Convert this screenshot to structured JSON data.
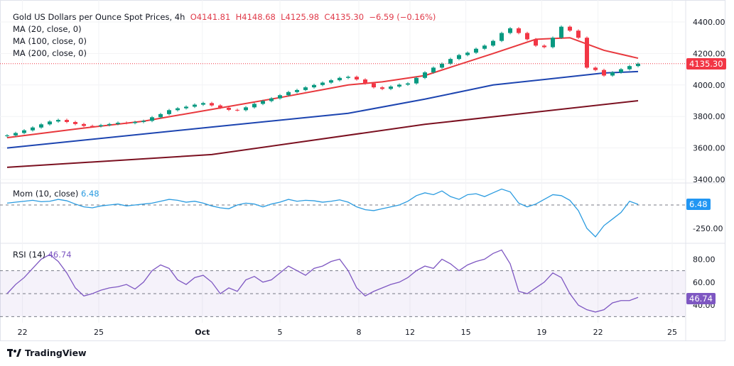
{
  "header": {
    "title": "Gold US Dollars per Ounce Spot Prices, 4h",
    "open": "O4141.81",
    "high": "H4148.68",
    "low": "L4125.98",
    "close": "C4135.30",
    "change": "−6.59 (−0.16%)",
    "ma20": "MA (20, close, 0)",
    "ma100": "MA (100, close, 0)",
    "ma200": "MA (200, close, 0)"
  },
  "momentum": {
    "label": "Mom (10, close)",
    "value": "6.48"
  },
  "rsi": {
    "label": "RSI (14)",
    "value": "46.74"
  },
  "price_tag": "4135.30",
  "logo": "TradingView",
  "colors": {
    "up": "#089981",
    "down": "#f23645",
    "ma20": "#e8383d",
    "ma100": "#1c44b0",
    "ma200": "#7b1020",
    "mom": "#2a9be0",
    "rsi": "#7e57c2"
  },
  "chart_data": [
    {
      "type": "candlestick",
      "title": "Gold US Dollars per Ounce Spot Prices, 4h",
      "ylim": [
        3400,
        4450
      ],
      "y_ticks": [
        "4400.00",
        "4200.00",
        "4000.00",
        "3800.00",
        "3600.00",
        "3400.00"
      ],
      "y_tick_values": [
        4400,
        4200,
        4000,
        3800,
        3600,
        3400
      ],
      "x_ticks": [
        {
          "label": "22",
          "bar": 1.8
        },
        {
          "label": "25",
          "bar": 10.75
        },
        {
          "label": "Oct",
          "bar": 22.9
        },
        {
          "label": "5",
          "bar": 32
        },
        {
          "label": "8",
          "bar": 41.25
        },
        {
          "label": "12",
          "bar": 47.25
        },
        {
          "label": "15",
          "bar": 53.8
        },
        {
          "label": "19",
          "bar": 62.7
        },
        {
          "label": "22",
          "bar": 69.3
        },
        {
          "label": "25",
          "bar": 78
        }
      ],
      "closes": [
        3680,
        3695,
        3712,
        3730,
        3750,
        3768,
        3778,
        3765,
        3752,
        3740,
        3738,
        3745,
        3752,
        3760,
        3758,
        3765,
        3772,
        3795,
        3815,
        3840,
        3852,
        3862,
        3875,
        3885,
        3870,
        3855,
        3842,
        3840,
        3858,
        3880,
        3898,
        3915,
        3935,
        3955,
        3968,
        3985,
        4000,
        4015,
        4030,
        4045,
        4052,
        4035,
        4010,
        3985,
        3975,
        3990,
        4002,
        4010,
        4045,
        4080,
        4110,
        4135,
        4165,
        4190,
        4205,
        4230,
        4250,
        4280,
        4330,
        4360,
        4330,
        4290,
        4250,
        4240,
        4300,
        4370,
        4345,
        4300,
        4110,
        4095,
        4060,
        4080,
        4100,
        4120,
        4135.3
      ],
      "series": [
        {
          "name": "MA (20, close, 0)",
          "points": [
            [
              0,
              3665
            ],
            [
              8,
              3720
            ],
            [
              16,
              3770
            ],
            [
              24,
              3845
            ],
            [
              32,
              3920
            ],
            [
              40,
              4000
            ],
            [
              44,
              4020
            ],
            [
              49,
              4060
            ],
            [
              57,
              4200
            ],
            [
              62,
              4290
            ],
            [
              66,
              4300
            ],
            [
              70,
              4220
            ],
            [
              74,
              4170
            ]
          ]
        },
        {
          "name": "MA (100, close, 0)",
          "points": [
            [
              0,
              3600
            ],
            [
              24,
              3733
            ],
            [
              40,
              3820
            ],
            [
              49,
              3910
            ],
            [
              57,
              4000
            ],
            [
              70,
              4076
            ],
            [
              74,
              4085
            ]
          ]
        },
        {
          "name": "MA (200, close, 0)",
          "points": [
            [
              0,
              3477
            ],
            [
              24,
              3558
            ],
            [
              49,
              3750
            ],
            [
              74,
              3900
            ]
          ]
        }
      ]
    },
    {
      "type": "line",
      "title": "Mom (10, close)",
      "ylim": [
        -400,
        200
      ],
      "y_ticks": [
        "-250.00"
      ],
      "y_tick_values": [
        -250
      ],
      "values": [
        20,
        30,
        40,
        50,
        35,
        40,
        60,
        45,
        10,
        -20,
        -30,
        -10,
        0,
        10,
        -10,
        0,
        10,
        20,
        40,
        60,
        50,
        30,
        40,
        20,
        -10,
        -30,
        -40,
        0,
        20,
        10,
        -20,
        10,
        30,
        60,
        40,
        50,
        45,
        30,
        40,
        55,
        30,
        -20,
        -50,
        -60,
        -40,
        -20,
        0,
        40,
        100,
        130,
        110,
        150,
        90,
        60,
        110,
        120,
        90,
        130,
        170,
        140,
        20,
        -20,
        10,
        60,
        110,
        100,
        50,
        -60,
        -250,
        -340,
        -220,
        -150,
        -80,
        40,
        6.48
      ]
    },
    {
      "type": "line",
      "title": "RSI (14)",
      "ylim": [
        25,
        92
      ],
      "y_ticks": [
        "80.00",
        "60.00",
        "40.00"
      ],
      "y_tick_values": [
        80,
        60,
        40
      ],
      "bands": [
        30,
        50,
        70
      ],
      "values": [
        50,
        58,
        64,
        72,
        80,
        84,
        78,
        68,
        55,
        48,
        50,
        53,
        55,
        56,
        58,
        54,
        60,
        70,
        75,
        72,
        62,
        58,
        64,
        66,
        60,
        50,
        55,
        52,
        62,
        65,
        60,
        62,
        68,
        74,
        70,
        66,
        72,
        74,
        78,
        80,
        70,
        55,
        48,
        52,
        55,
        58,
        60,
        64,
        70,
        74,
        72,
        80,
        76,
        70,
        75,
        78,
        80,
        85,
        88,
        76,
        52,
        50,
        55,
        60,
        68,
        64,
        50,
        40,
        36,
        34,
        36,
        42,
        44,
        44,
        46.74
      ]
    }
  ]
}
